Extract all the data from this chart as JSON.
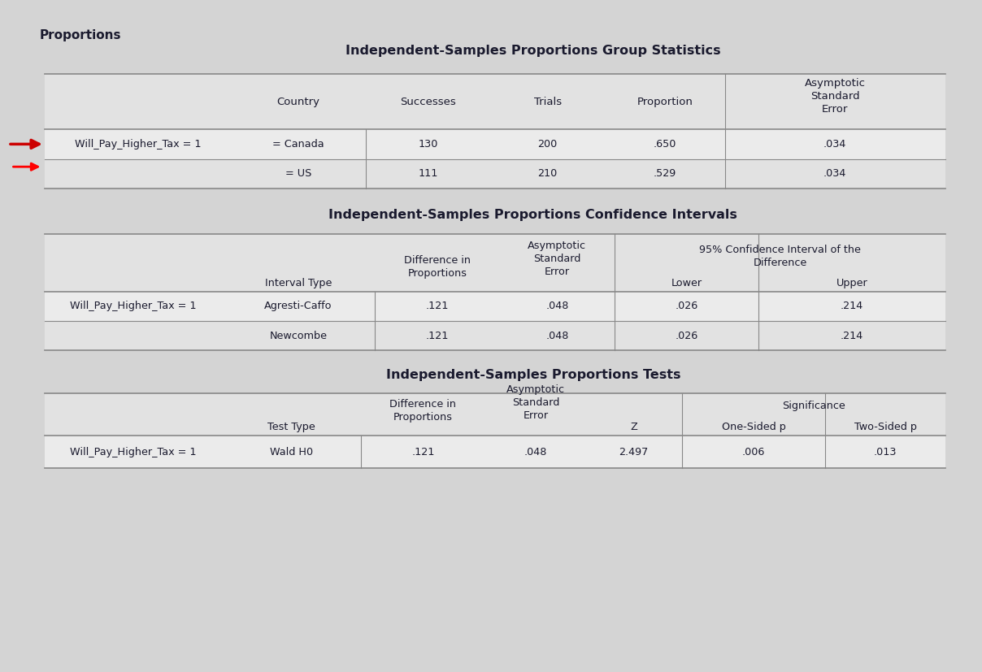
{
  "main_title": "Proportions",
  "bg_color": "#d4d4d4",
  "table_area_bg": "#e8e8e8",
  "row_bg_light": "#e8e8e8",
  "row_bg_dark": "#d8d8d8",
  "line_color": "#888888",
  "text_color": "#1a1a2e",
  "title_color": "#111111",
  "table1": {
    "title": "Independent-Samples Proportions Group Statistics",
    "col_headers": [
      "Country",
      "Successes",
      "Trials",
      "Proportion",
      "Asymptotic\nStandard\nError"
    ],
    "rows": [
      [
        "Will_Pay_Higher_Tax = 1",
        "= Canada",
        "130",
        "200",
        ".650",
        ".034"
      ],
      [
        "",
        "= US",
        "111",
        "210",
        ".529",
        ".034"
      ]
    ]
  },
  "table2": {
    "title": "Independent-Samples Proportions Confidence Intervals",
    "ci_header": "95% Confidence Interval of the\nDifference",
    "col_headers": [
      "Interval Type",
      "Difference in\nProportions",
      "Asymptotic\nStandard\nError",
      "Lower",
      "Upper"
    ],
    "rows": [
      [
        "Will_Pay_Higher_Tax = 1",
        "Agresti-Caffo",
        ".121",
        ".048",
        ".026",
        ".214"
      ],
      [
        "",
        "Newcombe",
        ".121",
        ".048",
        ".026",
        ".214"
      ]
    ]
  },
  "table3": {
    "title": "Independent-Samples Proportions Tests",
    "sig_header": "Significance",
    "col_headers": [
      "Test Type",
      "Difference in\nProportions",
      "Asymptotic\nStandard\nError",
      "Z",
      "One-Sided p",
      "Two-Sided p"
    ],
    "rows": [
      [
        "Will_Pay_Higher_Tax = 1",
        "Wald H0",
        ".121",
        ".048",
        "2.497",
        ".006",
        ".013"
      ]
    ]
  }
}
